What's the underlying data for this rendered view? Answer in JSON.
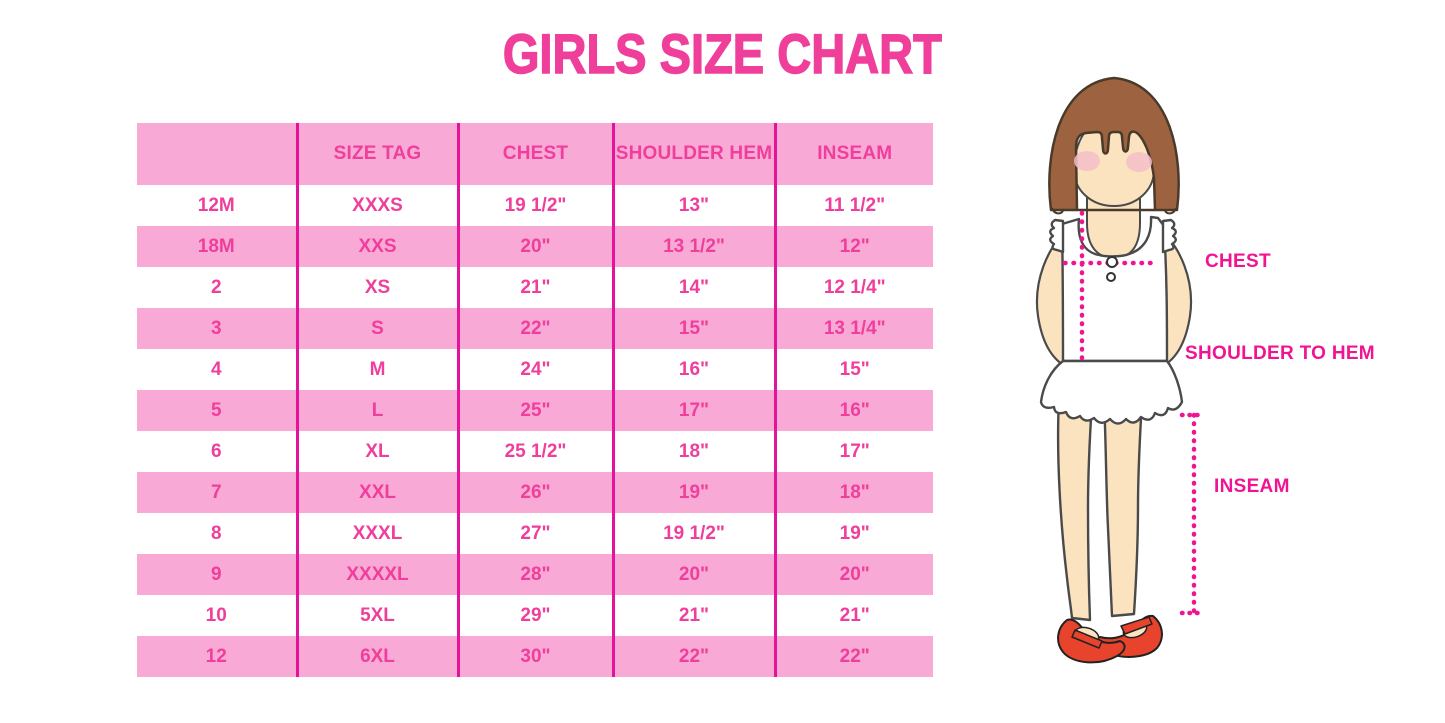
{
  "title": "GIRLS SIZE CHART",
  "chart_data": {
    "type": "table",
    "title": "GIRLS SIZE CHART",
    "columns": [
      "",
      "SIZE TAG",
      "CHEST",
      "SHOULDER HEM",
      "INSEAM"
    ],
    "rows": [
      [
        "12M",
        "XXXS",
        "19 1/2\"",
        "13\"",
        "11 1/2\""
      ],
      [
        "18M",
        "XXS",
        "20\"",
        "13 1/2\"",
        "12\""
      ],
      [
        "2",
        "XS",
        "21\"",
        "14\"",
        "12 1/4\""
      ],
      [
        "3",
        "S",
        "22\"",
        "15\"",
        "13 1/4\""
      ],
      [
        "4",
        "M",
        "24\"",
        "16\"",
        "15\""
      ],
      [
        "5",
        "L",
        "25\"",
        "17\"",
        "16\""
      ],
      [
        "6",
        "XL",
        "25 1/2\"",
        "18\"",
        "17\""
      ],
      [
        "7",
        "XXL",
        "26\"",
        "19\"",
        "18\""
      ],
      [
        "8",
        "XXXL",
        "27\"",
        "19 1/2\"",
        "19\""
      ],
      [
        "9",
        "XXXXL",
        "28\"",
        "20\"",
        "20\""
      ],
      [
        "10",
        "5XL",
        "29\"",
        "21\"",
        "21\""
      ],
      [
        "12",
        "6XL",
        "30\"",
        "22\"",
        "22\""
      ]
    ],
    "row_striping": "header and alternating rows pink, first data row white",
    "legend_position": "none"
  },
  "figure": {
    "chest_label": "CHEST",
    "shoulder_to_hem_label": "SHOULDER TO HEM",
    "inseam_label": "INSEAM"
  },
  "colors": {
    "title_pink": "#EF3F9B",
    "table_text_pink": "#EF3E9B",
    "row_band_pink": "#F9A9D6",
    "column_divider_pink": "#E4149A",
    "measurement_pink": "#F01493",
    "hair_brown": "#9D6340",
    "skin": "#FBE3C0",
    "blush_pink": "#F4BFC9",
    "shoe_red": "#E8432C",
    "background": "#FFFFFF"
  }
}
